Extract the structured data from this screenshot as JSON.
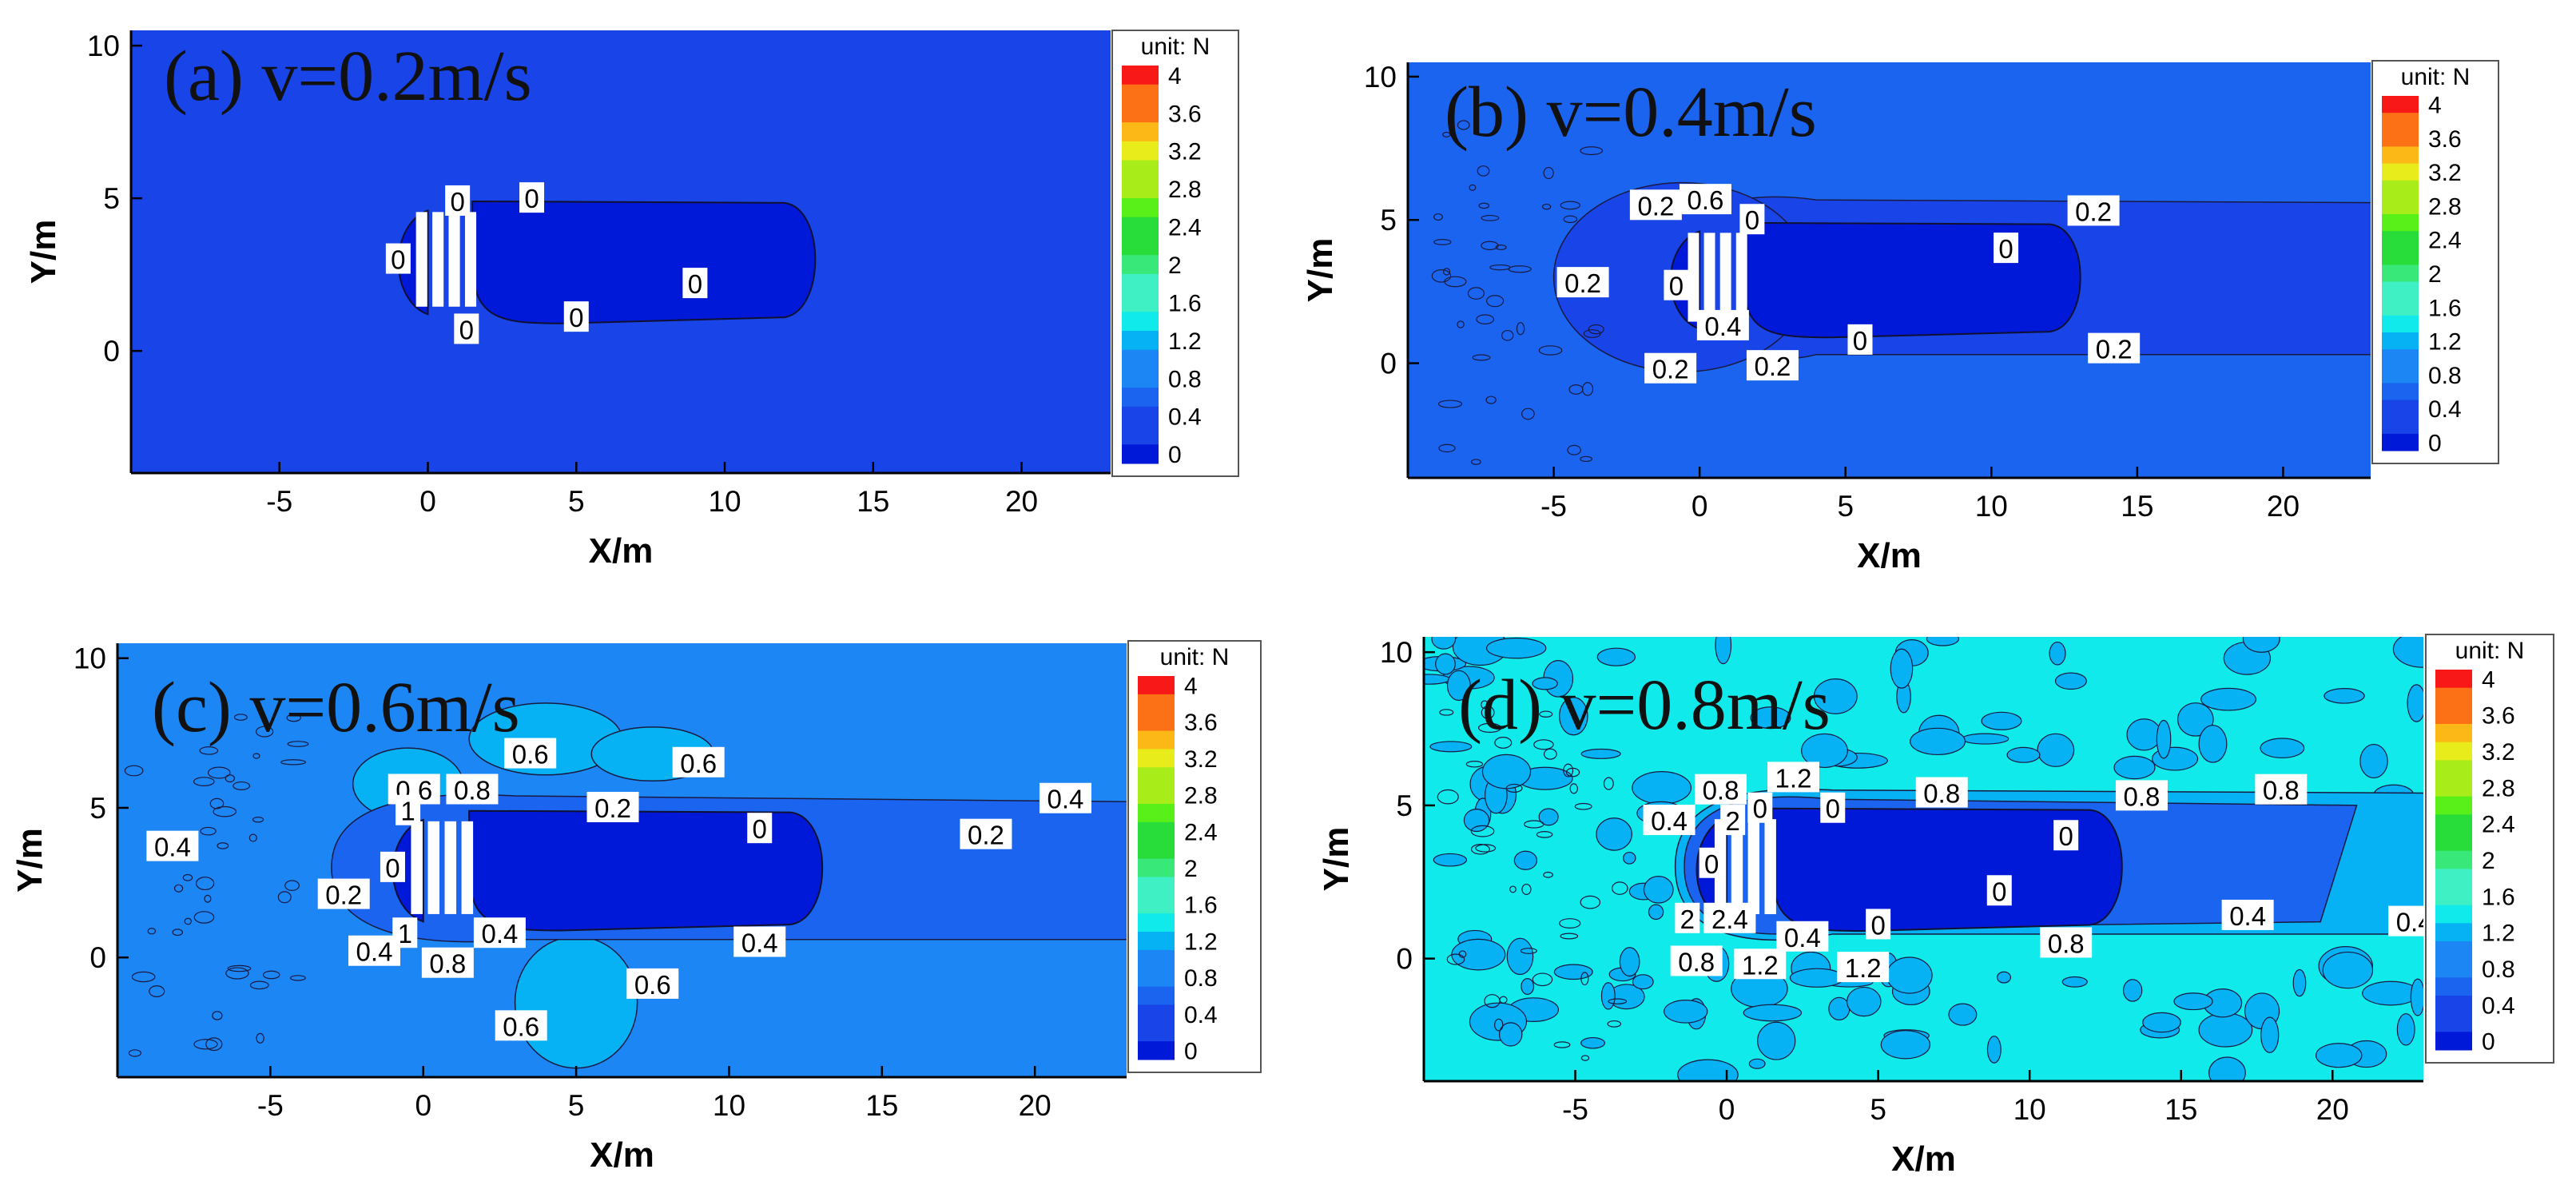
{
  "chart_data": [
    {
      "type": "contour",
      "panel": "a",
      "title": "(a) v=0.2m/s",
      "xlabel": "X/m",
      "ylabel": "Y/m",
      "xlim": [
        -10,
        23
      ],
      "ylim": [
        -4,
        10.5
      ],
      "xticks": [
        -5,
        0,
        5,
        10,
        15,
        20
      ],
      "yticks": [
        0,
        5,
        10
      ],
      "background_level": 0.2,
      "wake_level": 0,
      "legend": {
        "unit": "unit: N",
        "levels": [
          "4",
          "3.6",
          "3.2",
          "2.8",
          "2.4",
          "2",
          "1.6",
          "1.2",
          "0.8",
          "0.4",
          "0"
        ]
      },
      "contour_labels": [
        {
          "text": "0",
          "x": 1,
          "y": 4.9
        },
        {
          "text": "0",
          "x": 3.5,
          "y": 5
        },
        {
          "text": "0",
          "x": -1,
          "y": 3
        },
        {
          "text": "0",
          "x": 9,
          "y": 2.2
        },
        {
          "text": "0",
          "x": 5,
          "y": 1.1
        },
        {
          "text": "0",
          "x": 1.3,
          "y": 0.7
        }
      ]
    },
    {
      "type": "contour",
      "panel": "b",
      "title": "(b) v=0.4m/s",
      "xlabel": "X/m",
      "ylabel": "Y/m",
      "xlim": [
        -10,
        23
      ],
      "ylim": [
        -4,
        10.5
      ],
      "xticks": [
        -5,
        0,
        5,
        10,
        15,
        20
      ],
      "yticks": [
        0,
        5,
        10
      ],
      "background_level": 0.4,
      "wake_level": 0,
      "legend": {
        "unit": "unit: N",
        "levels": [
          "4",
          "3.6",
          "3.2",
          "2.8",
          "2.4",
          "2",
          "1.6",
          "1.2",
          "0.8",
          "0.4",
          "0"
        ]
      },
      "contour_labels": [
        {
          "text": "0.2",
          "x": -1.5,
          "y": 5.5
        },
        {
          "text": "0.6",
          "x": 0.2,
          "y": 5.7
        },
        {
          "text": "0",
          "x": 1.8,
          "y": 5
        },
        {
          "text": "0.2",
          "x": 13.5,
          "y": 5.3
        },
        {
          "text": "0",
          "x": 10.5,
          "y": 4
        },
        {
          "text": "0.2",
          "x": -4,
          "y": 2.8
        },
        {
          "text": "0",
          "x": -0.8,
          "y": 2.7
        },
        {
          "text": "0.4",
          "x": 0.8,
          "y": 1.3
        },
        {
          "text": "0",
          "x": 5.5,
          "y": 0.8
        },
        {
          "text": "0.2",
          "x": 14.2,
          "y": 0.5
        },
        {
          "text": "0.2",
          "x": -1,
          "y": -0.2
        },
        {
          "text": "0.2",
          "x": 2.5,
          "y": -0.1
        }
      ]
    },
    {
      "type": "contour",
      "panel": "c",
      "title": "(c)  v=0.6m/s",
      "xlabel": "X/m",
      "ylabel": "Y/m",
      "xlim": [
        -10,
        23
      ],
      "ylim": [
        -4,
        10.5
      ],
      "xticks": [
        -5,
        0,
        5,
        10,
        15,
        20
      ],
      "yticks": [
        0,
        5,
        10
      ],
      "background_level": 0.6,
      "wake_level": 0,
      "legend": {
        "unit": "unit: N",
        "levels": [
          "4",
          "3.6",
          "3.2",
          "2.8",
          "2.4",
          "2",
          "1.6",
          "1.2",
          "0.8",
          "0.4",
          "0"
        ]
      },
      "contour_labels": [
        {
          "text": "0.6",
          "x": 3.5,
          "y": 6.8
        },
        {
          "text": "0.6",
          "x": 9,
          "y": 6.5
        },
        {
          "text": "0.6",
          "x": -0.3,
          "y": 5.6
        },
        {
          "text": "0.8",
          "x": 1.6,
          "y": 5.6
        },
        {
          "text": "0.2",
          "x": 6.2,
          "y": 5
        },
        {
          "text": "0.4",
          "x": 21,
          "y": 5.3
        },
        {
          "text": "1",
          "x": -0.5,
          "y": 4.9
        },
        {
          "text": "0",
          "x": 11,
          "y": 4.3
        },
        {
          "text": "0.2",
          "x": 18.4,
          "y": 4.1
        },
        {
          "text": "0.4",
          "x": -8.2,
          "y": 3.7
        },
        {
          "text": "0",
          "x": -1,
          "y": 3
        },
        {
          "text": "0.2",
          "x": -2.6,
          "y": 2.1
        },
        {
          "text": "0.4",
          "x": 2.5,
          "y": 0.8
        },
        {
          "text": "1",
          "x": -0.6,
          "y": 0.8
        },
        {
          "text": "0.4",
          "x": 11,
          "y": 0.5
        },
        {
          "text": "0.4",
          "x": -1.6,
          "y": 0.2
        },
        {
          "text": "0.8",
          "x": 0.8,
          "y": -0.2
        },
        {
          "text": "0.6",
          "x": 7.5,
          "y": -0.9
        },
        {
          "text": "0.6",
          "x": 3.2,
          "y": -2.3
        }
      ]
    },
    {
      "type": "contour",
      "panel": "d",
      "title": "(d)  v=0.8m/s",
      "xlabel": "X/m",
      "ylabel": "Y/m",
      "xlim": [
        -10,
        23
      ],
      "ylim": [
        -4,
        10.5
      ],
      "xticks": [
        -5,
        0,
        5,
        10,
        15,
        20
      ],
      "yticks": [
        0,
        5,
        10
      ],
      "background_level": 1.0,
      "wake_level": 0,
      "legend": {
        "unit": "unit: N",
        "levels": [
          "4",
          "3.6",
          "3.2",
          "2.8",
          "2.4",
          "2",
          "1.6",
          "1.2",
          "0.8",
          "0.4",
          "0"
        ]
      },
      "contour_labels": [
        {
          "text": "1.2",
          "x": 2.2,
          "y": 5.9
        },
        {
          "text": "0.8",
          "x": -0.2,
          "y": 5.5
        },
        {
          "text": "0",
          "x": 1.1,
          "y": 4.9
        },
        {
          "text": "0",
          "x": 3.5,
          "y": 4.9
        },
        {
          "text": "0.8",
          "x": 7.1,
          "y": 5.4
        },
        {
          "text": "0.8",
          "x": 13.7,
          "y": 5.3
        },
        {
          "text": "0.8",
          "x": 18.3,
          "y": 5.5
        },
        {
          "text": "0.4",
          "x": -1.9,
          "y": 4.5
        },
        {
          "text": "2",
          "x": 0.2,
          "y": 4.5
        },
        {
          "text": "0",
          "x": 11.2,
          "y": 4
        },
        {
          "text": "0",
          "x": -0.5,
          "y": 3.1
        },
        {
          "text": "0",
          "x": 9,
          "y": 2.2
        },
        {
          "text": "0.4",
          "x": 17.2,
          "y": 1.4
        },
        {
          "text": "0.4",
          "x": 22.7,
          "y": 1.2
        },
        {
          "text": "2",
          "x": -1.3,
          "y": 1.3
        },
        {
          "text": "2.4",
          "x": 0.1,
          "y": 1.3
        },
        {
          "text": "0.4",
          "x": 2.5,
          "y": 0.7
        },
        {
          "text": "0",
          "x": 5,
          "y": 1.1
        },
        {
          "text": "0.8",
          "x": 11.2,
          "y": 0.5
        },
        {
          "text": "0.8",
          "x": -1,
          "y": -0.1
        },
        {
          "text": "1.2",
          "x": 1.1,
          "y": -0.2
        },
        {
          "text": "1.2",
          "x": 4.5,
          "y": -0.3
        }
      ]
    }
  ],
  "colormap": {
    "0": "#0018d8",
    "0.2": "#1844e8",
    "0.4": "#1a64f0",
    "0.6": "#1c86f4",
    "0.8": "#06b2f4",
    "1.0": "#10eaea",
    "1.2": "#3ff0c4",
    "1.6": "#38e878",
    "2": "#28dc3a",
    "2.4": "#58f018",
    "2.8": "#a8ec1a",
    "3.2": "#e8ec1a",
    "3.6": "#fcb816",
    "4": "#fc7016",
    "top": "#f81818"
  }
}
